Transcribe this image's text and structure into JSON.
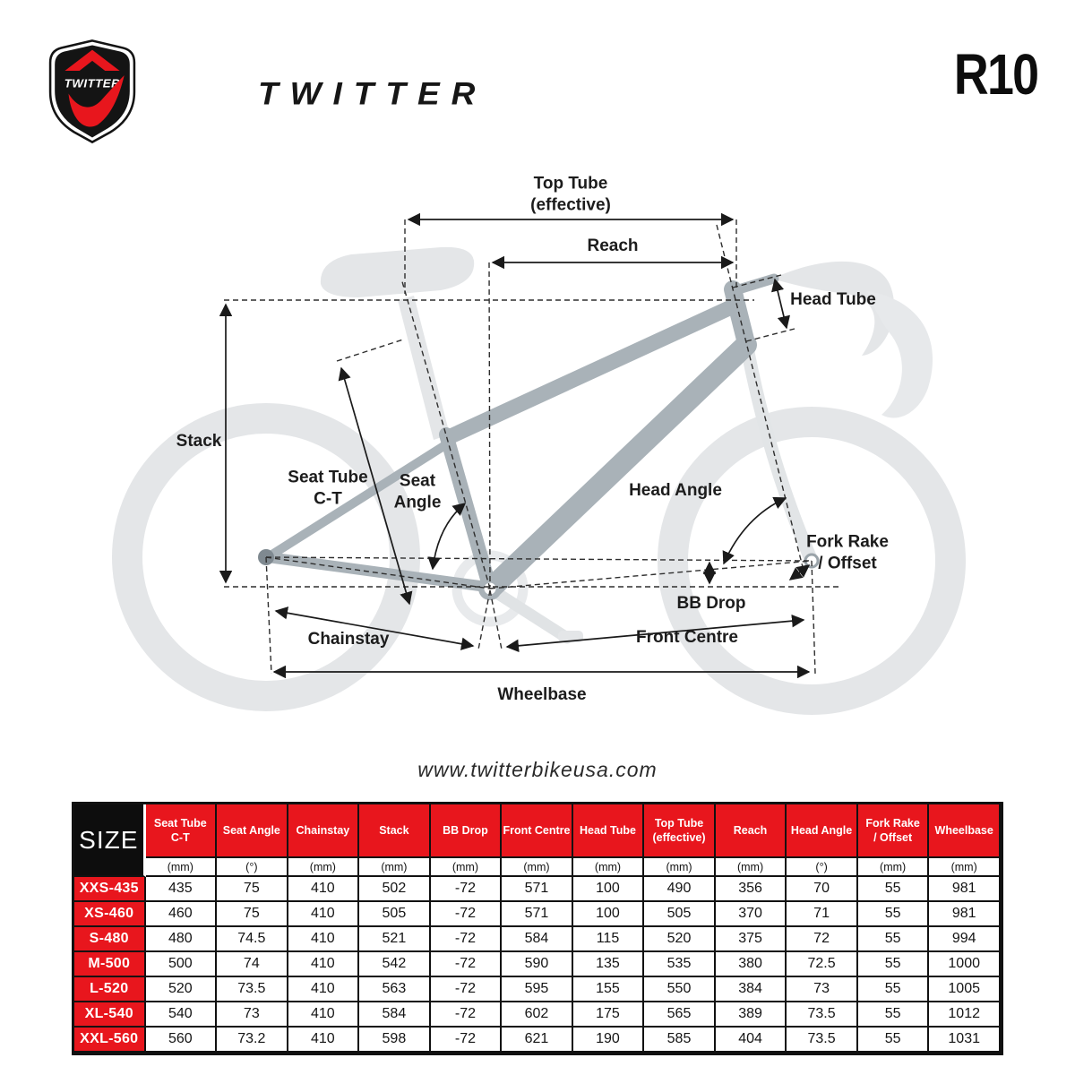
{
  "brand": {
    "shield_text": "TWITTER",
    "wordmark": "TWITTER",
    "model": "R10"
  },
  "website": "www.twitterbikeusa.com",
  "colors": {
    "accent_red": "#E8161D",
    "header_black": "#0D0D0D",
    "frame_gray": "#A9B2B8",
    "light_gray": "#E4E6E8"
  },
  "diagram": {
    "labels": {
      "top_tube": [
        "Top Tube",
        "(effective)"
      ],
      "reach": "Reach",
      "head_tube": "Head Tube",
      "stack": "Stack",
      "seat_tube_ct": [
        "Seat Tube",
        "C-T"
      ],
      "seat_angle": [
        "Seat",
        "Angle"
      ],
      "head_angle": "Head Angle",
      "fork_rake": [
        "Fork Rake",
        "/ Offset"
      ],
      "bb_drop": "BB Drop",
      "chainstay": "Chainstay",
      "front_centre": "Front Centre",
      "wheelbase": "Wheelbase"
    }
  },
  "table": {
    "size_header": "SIZE",
    "columns": [
      {
        "label": [
          "Seat Tube",
          "C-T"
        ],
        "unit": "(mm)"
      },
      {
        "label": "Seat Angle",
        "unit": "(°)"
      },
      {
        "label": "Chainstay",
        "unit": "(mm)"
      },
      {
        "label": "Stack",
        "unit": "(mm)"
      },
      {
        "label": "BB Drop",
        "unit": "(mm)"
      },
      {
        "label": "Front Centre",
        "unit": "(mm)"
      },
      {
        "label": "Head Tube",
        "unit": "(mm)"
      },
      {
        "label": [
          "Top Tube",
          "(effective)"
        ],
        "unit": "(mm)"
      },
      {
        "label": "Reach",
        "unit": "(mm)"
      },
      {
        "label": "Head Angle",
        "unit": "(°)"
      },
      {
        "label": [
          "Fork Rake",
          "/ Offset"
        ],
        "unit": "(mm)"
      },
      {
        "label": "Wheelbase",
        "unit": "(mm)"
      }
    ],
    "rows": [
      {
        "size": "XXS-435",
        "values": [
          435,
          75,
          410,
          502,
          -72,
          571,
          100,
          490,
          356,
          70,
          55,
          981
        ]
      },
      {
        "size": "XS-460",
        "values": [
          460,
          75,
          410,
          505,
          -72,
          571,
          100,
          505,
          370,
          71,
          55,
          981
        ]
      },
      {
        "size": "S-480",
        "values": [
          480,
          74.5,
          410,
          521,
          -72,
          584,
          115,
          520,
          375,
          72,
          55,
          994
        ]
      },
      {
        "size": "M-500",
        "values": [
          500,
          74,
          410,
          542,
          -72,
          590,
          135,
          535,
          380,
          72.5,
          55,
          1000
        ]
      },
      {
        "size": "L-520",
        "values": [
          520,
          73.5,
          410,
          563,
          -72,
          595,
          155,
          550,
          384,
          73,
          55,
          1005
        ]
      },
      {
        "size": "XL-540",
        "values": [
          540,
          73,
          410,
          584,
          -72,
          602,
          175,
          565,
          389,
          73.5,
          55,
          1012
        ]
      },
      {
        "size": "XXL-560",
        "values": [
          560,
          73.2,
          410,
          598,
          -72,
          621,
          190,
          585,
          404,
          73.5,
          55,
          1031
        ]
      }
    ]
  }
}
